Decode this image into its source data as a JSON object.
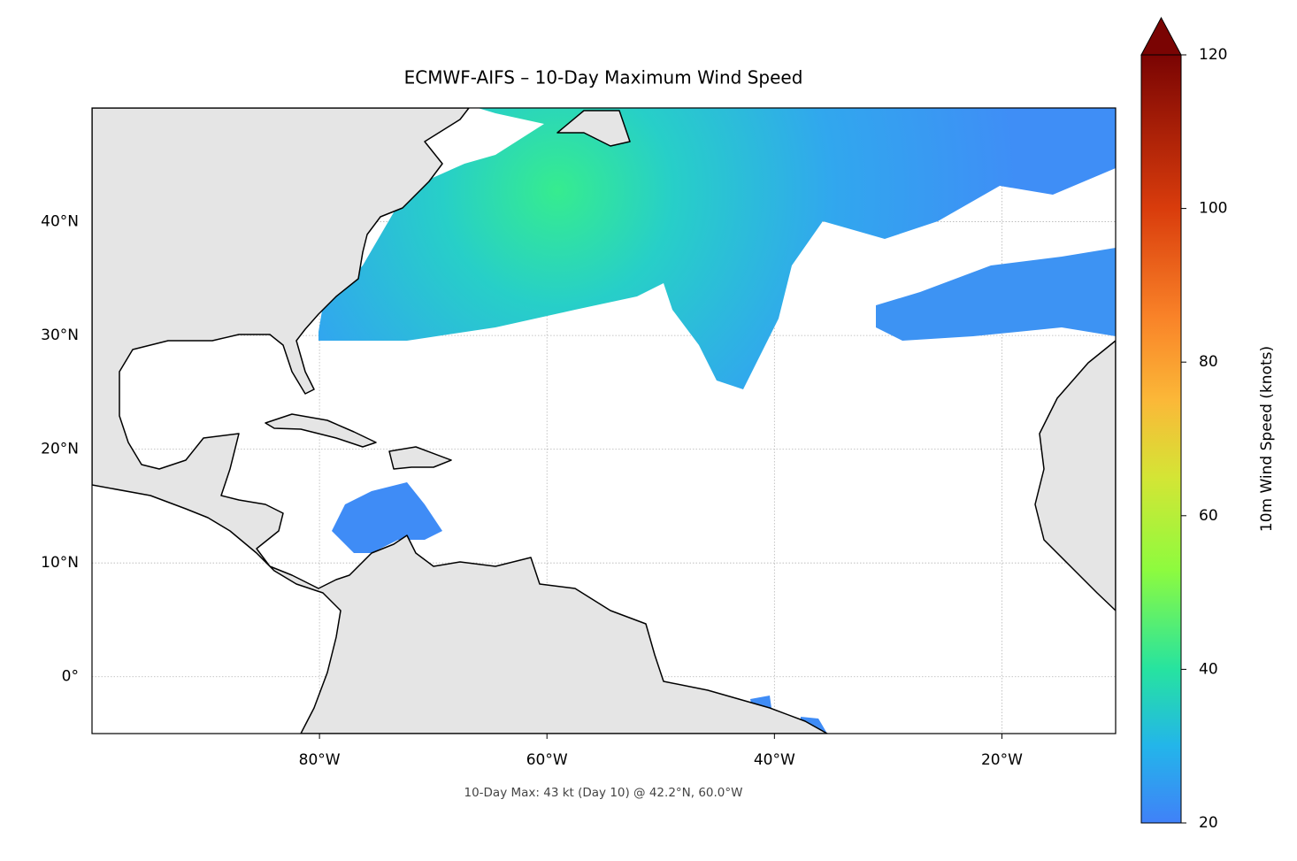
{
  "chart_data": {
    "type": "map",
    "title": "ECMWF-AIFS – 10-Day Maximum Wind Speed",
    "annotation": "10-Day Max: 43 kt (Day 10) @ 42.2°N, 60.0°W",
    "xlim": [
      -100,
      -10
    ],
    "ylim": [
      -5,
      50
    ],
    "xticks": [
      {
        "value": -80,
        "label": "80°W"
      },
      {
        "value": -60,
        "label": "60°W"
      },
      {
        "value": -40,
        "label": "40°W"
      },
      {
        "value": -20,
        "label": "20°W"
      }
    ],
    "yticks": [
      {
        "value": 0,
        "label": "0°"
      },
      {
        "value": 10,
        "label": "10°N"
      },
      {
        "value": 20,
        "label": "20°N"
      },
      {
        "value": 30,
        "label": "30°N"
      },
      {
        "value": 40,
        "label": "40°N"
      }
    ],
    "grid": true,
    "colorbar": {
      "label": "10m Wind Speed (knots)",
      "lim": [
        20,
        120
      ],
      "ticks": [
        20,
        40,
        60,
        80,
        100,
        120
      ],
      "extend": "max"
    }
  }
}
